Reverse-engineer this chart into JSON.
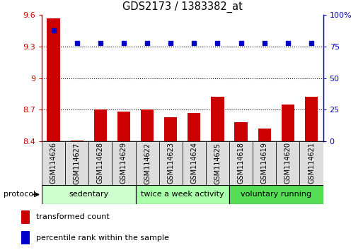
{
  "title": "GDS2173 / 1383382_at",
  "categories": [
    "GSM114626",
    "GSM114627",
    "GSM114628",
    "GSM114629",
    "GSM114622",
    "GSM114623",
    "GSM114624",
    "GSM114625",
    "GSM114618",
    "GSM114619",
    "GSM114620",
    "GSM114621"
  ],
  "bar_values": [
    9.57,
    8.41,
    8.7,
    8.68,
    8.7,
    8.63,
    8.67,
    8.82,
    8.58,
    8.52,
    8.75,
    8.82
  ],
  "dot_values": [
    88,
    78,
    78,
    78,
    78,
    78,
    78,
    78,
    78,
    78,
    78,
    78
  ],
  "bar_color": "#cc0000",
  "dot_color": "#0000cc",
  "ylim_left": [
    8.4,
    9.6
  ],
  "ylim_right": [
    0,
    100
  ],
  "yticks_left": [
    8.4,
    8.7,
    9.0,
    9.3,
    9.6
  ],
  "ytick_labels_left": [
    "8.4",
    "8.7",
    "9",
    "9.3",
    "9.6"
  ],
  "yticks_right": [
    0,
    25,
    50,
    75,
    100
  ],
  "ytick_labels_right": [
    "0",
    "25",
    "50",
    "75",
    "100%"
  ],
  "grid_values": [
    8.7,
    9.0,
    9.3
  ],
  "bar_baseline": 8.4,
  "groups": [
    {
      "label": "sedentary",
      "start": 0,
      "end": 4,
      "color": "#ccffcc"
    },
    {
      "label": "twice a week activity",
      "start": 4,
      "end": 8,
      "color": "#aaffaa"
    },
    {
      "label": "voluntary running",
      "start": 8,
      "end": 12,
      "color": "#55dd55"
    }
  ],
  "protocol_label": "protocol",
  "legend_bar_label": "transformed count",
  "legend_dot_label": "percentile rank within the sample",
  "bar_width": 0.55,
  "xtick_box_color": "#dddddd",
  "background_color": "#ffffff"
}
